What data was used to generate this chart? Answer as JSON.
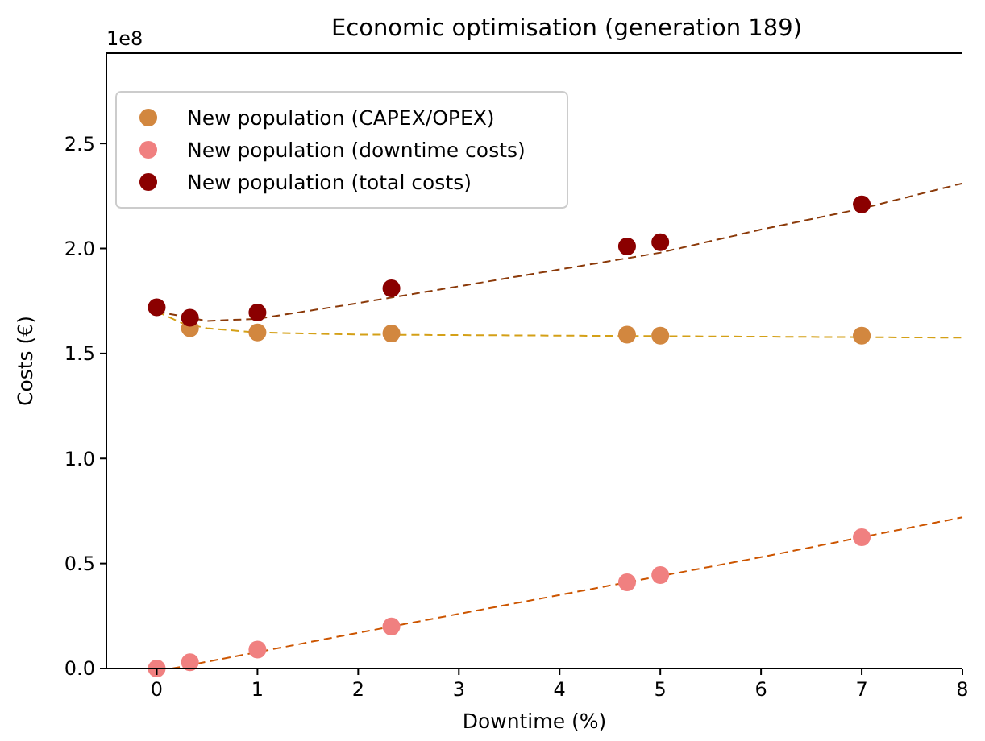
{
  "chart_data": {
    "type": "scatter",
    "title": "Economic optimisation (generation 189)",
    "xlabel": "Downtime (%)",
    "ylabel": "Costs (€)",
    "annotations": [
      "1e8"
    ],
    "xlim": [
      -0.5,
      8
    ],
    "ylim": [
      0,
      2.93
    ],
    "xticks": [
      0,
      1,
      2,
      3,
      4,
      5,
      6,
      7,
      8
    ],
    "yticks": [
      {
        "value": 0,
        "label": "0.0"
      },
      {
        "value": 0.5,
        "label": "0.5"
      },
      {
        "value": 1,
        "label": "1.0"
      },
      {
        "value": 1.5,
        "label": "1.5"
      },
      {
        "value": 2,
        "label": "2.0"
      },
      {
        "value": 2.5,
        "label": "2.5"
      }
    ],
    "grid": false,
    "legend": "top left",
    "marker": "circle",
    "series": [
      {
        "type": "line",
        "marker": "none",
        "line_style": "dashed",
        "color": "#d4a017",
        "x": [
          0,
          0.25,
          0.5,
          1,
          2,
          4,
          6,
          8
        ],
        "values": [
          1.7,
          1.645,
          1.62,
          1.6,
          1.59,
          1.585,
          1.58,
          1.575
        ]
      },
      {
        "type": "line",
        "marker": "none",
        "line_style": "dashed",
        "color": "#cc5500",
        "x": [
          0.15,
          2,
          4,
          6,
          8
        ],
        "values": [
          0,
          0.17,
          0.35,
          0.53,
          0.72
        ]
      },
      {
        "type": "line",
        "marker": "none",
        "line_style": "dashed",
        "color": "#8b3a0a",
        "x": [
          0,
          0.5,
          1,
          2,
          3,
          4,
          5,
          6,
          7,
          8
        ],
        "values": [
          1.7,
          1.655,
          1.665,
          1.74,
          1.82,
          1.9,
          1.98,
          2.09,
          2.19,
          2.31
        ]
      },
      {
        "name": "New population (CAPEX/OPEX)",
        "color": "#d2873f",
        "x": [
          0.33,
          1,
          2.33,
          4.67,
          5,
          7
        ],
        "values": [
          1.62,
          1.6,
          1.595,
          1.59,
          1.585,
          1.585
        ]
      },
      {
        "name": "New population (downtime costs)",
        "color": "#f08080",
        "x": [
          0,
          0.33,
          1,
          2.33,
          4.67,
          5,
          7
        ],
        "values": [
          0,
          0.03,
          0.09,
          0.2,
          0.41,
          0.445,
          0.625
        ]
      },
      {
        "name": "New population (total costs)",
        "color": "#8b0000",
        "x": [
          0,
          0.33,
          1,
          2.33,
          4.67,
          5,
          7
        ],
        "values": [
          1.72,
          1.67,
          1.695,
          1.81,
          2.01,
          2.03,
          2.21
        ]
      }
    ]
  }
}
